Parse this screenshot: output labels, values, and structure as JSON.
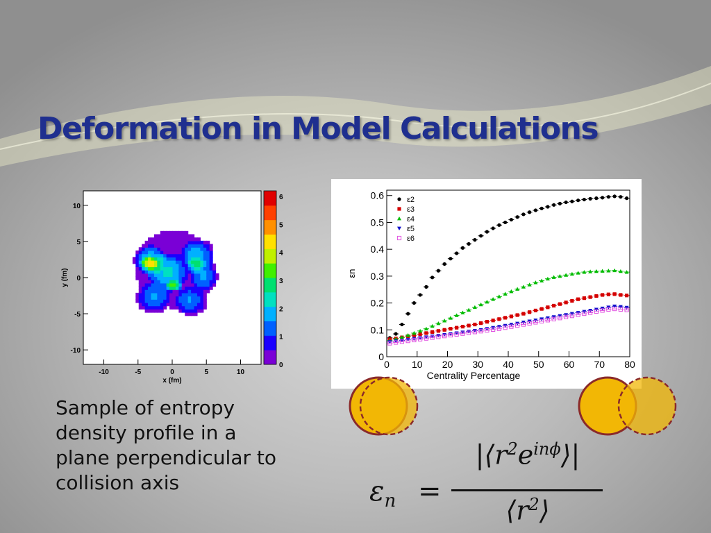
{
  "slide": {
    "title": "Deformation in Model Calculations",
    "caption": "Sample of entropy density profile in a plane perpendicular to collision axis",
    "accent_color": "#1f2f8f",
    "disc_fill_color": "#f2b705",
    "disc_outline_color": "#8a2a2a"
  },
  "formula": {
    "lhs": "ε",
    "lhs_sub": "n",
    "equals": "=",
    "numerator_open": "|⟨r",
    "numerator_sup1": "2",
    "numerator_mid": "e",
    "numerator_sup2": "inϕ",
    "numerator_close": "⟩|",
    "denominator_open": "⟨r",
    "denominator_sup": "2",
    "denominator_close": "⟩"
  },
  "chart_data": [
    {
      "type": "heatmap",
      "title": "",
      "xlabel": "x (fm)",
      "ylabel": "y (fm)",
      "xlim": [
        -13,
        13
      ],
      "ylim": [
        -12,
        12
      ],
      "xticks": [
        -10,
        -5,
        0,
        5,
        10
      ],
      "yticks": [
        -10,
        -5,
        0,
        5,
        10
      ],
      "colorbar": {
        "range": [
          0,
          6.2
        ],
        "ticks": [
          0,
          1,
          2,
          3,
          4,
          5,
          6
        ]
      },
      "blobs": [
        {
          "x": 0,
          "y": 1,
          "rx": 6.2,
          "ry": 6.0,
          "v": 0.6
        },
        {
          "x": -3.5,
          "y": 2.2,
          "rx": 2.4,
          "ry": 2.2,
          "v": 1.8
        },
        {
          "x": 3.5,
          "y": 3.0,
          "rx": 2.5,
          "ry": 2.2,
          "v": 1.6
        },
        {
          "x": 2.5,
          "y": -3.5,
          "rx": 2.4,
          "ry": 2.0,
          "v": 1.4
        },
        {
          "x": -3.0,
          "y": -3.0,
          "rx": 2.6,
          "ry": 2.2,
          "v": 1.4
        },
        {
          "x": 4.5,
          "y": 0.0,
          "rx": 2.0,
          "ry": 2.4,
          "v": 1.4
        },
        {
          "x": -1.0,
          "y": 0.5,
          "rx": 3.0,
          "ry": 2.8,
          "v": 1.6
        },
        {
          "x": -3.6,
          "y": 1.8,
          "rx": 1.4,
          "ry": 1.1,
          "v": 2.2
        },
        {
          "x": 0.0,
          "y": -1.3,
          "rx": 1.3,
          "ry": 0.8,
          "v": 2.3
        },
        {
          "x": 3.0,
          "y": 1.5,
          "rx": 1.3,
          "ry": 1.2,
          "v": 1.4
        }
      ]
    },
    {
      "type": "scatter",
      "title": "",
      "xlabel": "Centrality Percentage",
      "ylabel": "εn",
      "xlim": [
        0,
        80
      ],
      "ylim": [
        0,
        0.62
      ],
      "xticks": [
        0,
        10,
        20,
        30,
        40,
        50,
        60,
        70,
        80
      ],
      "yticks": [
        0,
        0.1,
        0.2,
        0.3,
        0.4,
        0.5,
        0.6
      ],
      "legend_position": "top-left",
      "x": [
        1,
        3,
        5,
        7,
        9,
        11,
        13,
        15,
        17,
        19,
        21,
        23,
        25,
        27,
        29,
        31,
        33,
        35,
        37,
        39,
        41,
        43,
        45,
        47,
        49,
        51,
        53,
        55,
        57,
        59,
        61,
        63,
        65,
        67,
        69,
        71,
        73,
        75,
        77,
        79
      ],
      "series": [
        {
          "name": "ε2",
          "marker": "circle",
          "color": "#000000",
          "values": [
            0.07,
            0.085,
            0.12,
            0.16,
            0.2,
            0.23,
            0.26,
            0.295,
            0.32,
            0.345,
            0.365,
            0.385,
            0.405,
            0.42,
            0.435,
            0.45,
            0.465,
            0.478,
            0.49,
            0.5,
            0.51,
            0.52,
            0.53,
            0.538,
            0.545,
            0.552,
            0.558,
            0.565,
            0.57,
            0.575,
            0.578,
            0.582,
            0.585,
            0.588,
            0.59,
            0.592,
            0.595,
            0.597,
            0.595,
            0.59
          ]
        },
        {
          "name": "ε3",
          "marker": "square",
          "color": "#d40000",
          "values": [
            0.065,
            0.068,
            0.072,
            0.076,
            0.08,
            0.084,
            0.088,
            0.092,
            0.096,
            0.1,
            0.104,
            0.108,
            0.112,
            0.116,
            0.12,
            0.125,
            0.13,
            0.135,
            0.14,
            0.145,
            0.15,
            0.155,
            0.16,
            0.166,
            0.172,
            0.178,
            0.184,
            0.19,
            0.196,
            0.202,
            0.208,
            0.214,
            0.218,
            0.222,
            0.226,
            0.23,
            0.232,
            0.233,
            0.23,
            0.228
          ]
        },
        {
          "name": "ε4",
          "marker": "triangle-up",
          "color": "#00bb00",
          "values": [
            0.06,
            0.066,
            0.072,
            0.08,
            0.088,
            0.096,
            0.104,
            0.114,
            0.124,
            0.134,
            0.144,
            0.154,
            0.164,
            0.174,
            0.184,
            0.194,
            0.204,
            0.214,
            0.224,
            0.234,
            0.243,
            0.252,
            0.26,
            0.268,
            0.276,
            0.283,
            0.29,
            0.296,
            0.3,
            0.304,
            0.308,
            0.312,
            0.315,
            0.317,
            0.318,
            0.319,
            0.32,
            0.321,
            0.318,
            0.315
          ]
        },
        {
          "name": "ε5",
          "marker": "triangle-down",
          "color": "#1010cc",
          "values": [
            0.055,
            0.058,
            0.061,
            0.064,
            0.067,
            0.07,
            0.073,
            0.076,
            0.079,
            0.082,
            0.085,
            0.088,
            0.091,
            0.094,
            0.097,
            0.1,
            0.104,
            0.108,
            0.112,
            0.116,
            0.12,
            0.124,
            0.128,
            0.132,
            0.136,
            0.14,
            0.144,
            0.148,
            0.152,
            0.156,
            0.16,
            0.164,
            0.168,
            0.172,
            0.176,
            0.18,
            0.184,
            0.188,
            0.186,
            0.183
          ]
        },
        {
          "name": "ε6",
          "marker": "open-square",
          "color": "#e050e0",
          "values": [
            0.05,
            0.053,
            0.056,
            0.059,
            0.062,
            0.065,
            0.068,
            0.071,
            0.074,
            0.077,
            0.08,
            0.083,
            0.086,
            0.089,
            0.092,
            0.095,
            0.098,
            0.101,
            0.104,
            0.108,
            0.112,
            0.116,
            0.12,
            0.124,
            0.128,
            0.132,
            0.136,
            0.14,
            0.144,
            0.148,
            0.152,
            0.156,
            0.16,
            0.164,
            0.168,
            0.172,
            0.176,
            0.178,
            0.176,
            0.174
          ]
        }
      ]
    }
  ]
}
